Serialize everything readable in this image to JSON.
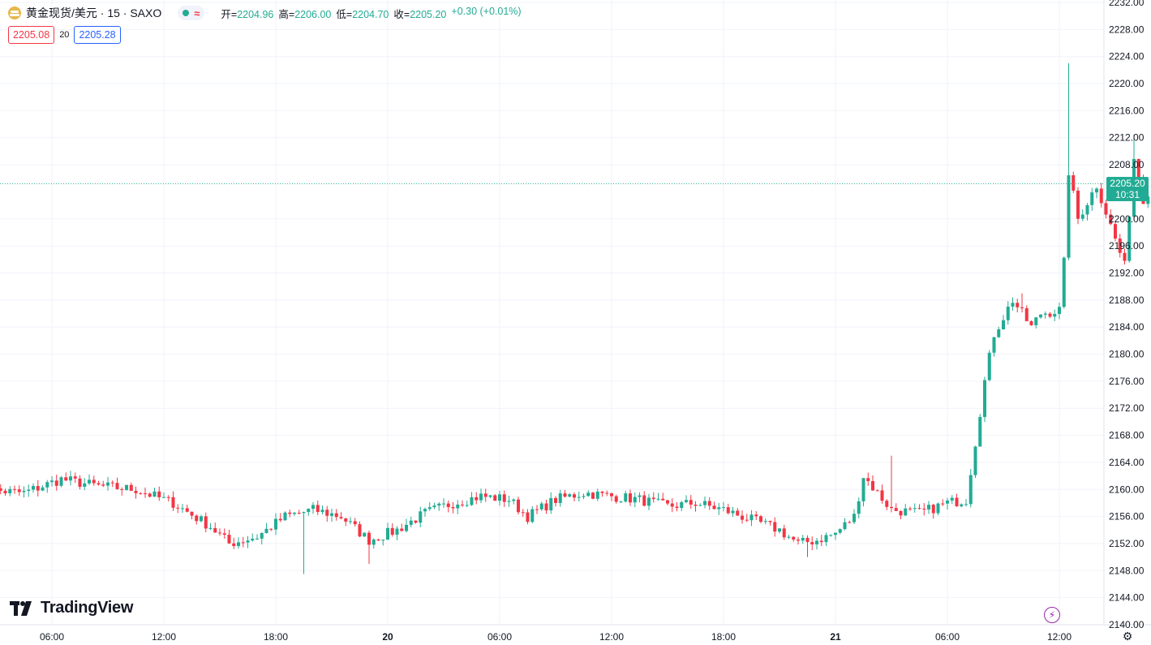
{
  "header": {
    "symbol": "黄金现货/美元 · 15 · SAXO",
    "open_label": "开=",
    "open": "2204.96",
    "high_label": "高=",
    "high": "2206.00",
    "low_label": "低=",
    "low": "2204.70",
    "close_label": "收=",
    "close": "2205.20",
    "change": "+0.30 (+0.01%)",
    "sell_price": "2205.08",
    "spread": "20",
    "buy_price": "2205.28",
    "status_icon": "market-open-dot",
    "wave_icon": "≈"
  },
  "last_price": {
    "price": "2205.20",
    "countdown": "10:31",
    "value": 2205.2
  },
  "branding": {
    "logo_text": "TradingView"
  },
  "colors": {
    "up": "#22ab94",
    "down": "#f23645",
    "grid": "#f0f3fa",
    "price_line": "#22ab94"
  },
  "chart_data": {
    "type": "candlestick",
    "ylim": [
      2140,
      2232
    ],
    "y_ticks": [
      2140,
      2144,
      2148,
      2152,
      2156,
      2160,
      2164,
      2168,
      2172,
      2176,
      2180,
      2184,
      2188,
      2192,
      2196,
      2200,
      2208,
      2212,
      2216,
      2220,
      2224,
      2228,
      2232
    ],
    "y_tick_labels": [
      "2140.00",
      "2144.00",
      "2148.00",
      "2152.00",
      "2156.00",
      "2160.00",
      "2164.00",
      "2168.00",
      "2172.00",
      "2176.00",
      "2180.00",
      "2184.00",
      "2188.00",
      "2192.00",
      "2196.00",
      "2200.00",
      "2208.00",
      "2212.00",
      "2216.00",
      "2220.00",
      "2224.00",
      "2228.00",
      "2232.00"
    ],
    "x_ticks": [
      {
        "label": "06:00",
        "hour": 6,
        "bold": false
      },
      {
        "label": "12:00",
        "hour": 12,
        "bold": false
      },
      {
        "label": "18:00",
        "hour": 18,
        "bold": false
      },
      {
        "label": "20",
        "hour": 24,
        "bold": true
      },
      {
        "label": "06:00",
        "hour": 30,
        "bold": false
      },
      {
        "label": "12:00",
        "hour": 36,
        "bold": false
      },
      {
        "label": "18:00",
        "hour": 42,
        "bold": false
      },
      {
        "label": "21",
        "hour": 48,
        "bold": true
      },
      {
        "label": "06:00",
        "hour": 54,
        "bold": false
      },
      {
        "label": "12:00",
        "hour": 60,
        "bold": false
      }
    ],
    "x_range_hours": [
      2.0,
      62.0
    ],
    "start_hour": 2.0,
    "bar_hours": 0.25,
    "anchors": [
      [
        0,
        2160
      ],
      [
        10,
        2159.5
      ],
      [
        18,
        2161.5
      ],
      [
        26,
        2160.5
      ],
      [
        34,
        2160
      ],
      [
        42,
        2158
      ],
      [
        50,
        2154.5
      ],
      [
        54,
        2152
      ],
      [
        60,
        2153
      ],
      [
        66,
        2156
      ],
      [
        72,
        2157
      ],
      [
        78,
        2156
      ],
      [
        84,
        2152.5
      ],
      [
        90,
        2154
      ],
      [
        96,
        2156.5
      ],
      [
        102,
        2158
      ],
      [
        108,
        2159
      ],
      [
        114,
        2158.5
      ],
      [
        118,
        2156
      ],
      [
        124,
        2158.5
      ],
      [
        130,
        2159.5
      ],
      [
        136,
        2159
      ],
      [
        142,
        2158.5
      ],
      [
        148,
        2157.5
      ],
      [
        154,
        2158
      ],
      [
        160,
        2157
      ],
      [
        166,
        2155.5
      ],
      [
        172,
        2154
      ],
      [
        176,
        2152
      ],
      [
        180,
        2152.5
      ],
      [
        184,
        2153.5
      ],
      [
        188,
        2156
      ],
      [
        190,
        2162
      ],
      [
        196,
        2157
      ],
      [
        202,
        2156.5
      ],
      [
        208,
        2158
      ],
      [
        212,
        2158.5
      ],
      [
        214,
        2167
      ],
      [
        216,
        2176
      ],
      [
        218,
        2183
      ],
      [
        222,
        2188
      ],
      [
        226,
        2184
      ],
      [
        228,
        2186
      ],
      [
        232,
        2186.5
      ],
      [
        233,
        2193.5
      ],
      [
        234,
        2207
      ],
      [
        236,
        2200
      ],
      [
        240,
        2205
      ],
      [
        244,
        2197
      ],
      [
        246,
        2193
      ],
      [
        248,
        2209
      ],
      [
        250,
        2203
      ],
      [
        252,
        2205.2
      ]
    ],
    "spikes": [
      {
        "i": 196,
        "high": 2165
      },
      {
        "i": 224,
        "high": 2189
      },
      {
        "i": 234,
        "high": 2223
      },
      {
        "i": 248,
        "high": 2212.5
      },
      {
        "i": 178,
        "low": 2150
      },
      {
        "i": 84,
        "low": 2149
      },
      {
        "i": 70,
        "low": 2147.5
      }
    ]
  }
}
